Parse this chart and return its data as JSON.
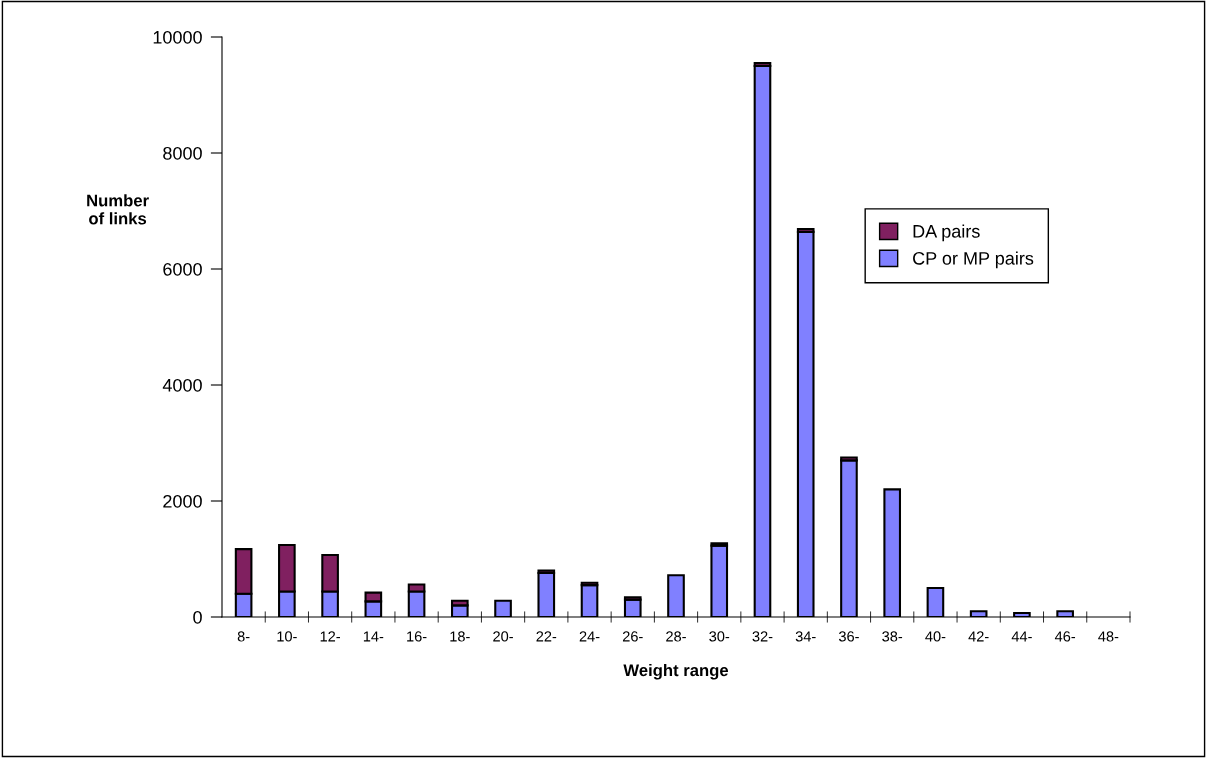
{
  "chart_data": {
    "type": "bar",
    "stacked": true,
    "xlabel": "Weight range",
    "ylabel": "Number\nof links",
    "categories": [
      "8-",
      "10-",
      "12-",
      "14-",
      "16-",
      "18-",
      "20-",
      "22-",
      "24-",
      "26-",
      "28-",
      "30-",
      "32-",
      "34-",
      "36-",
      "38-",
      "40-",
      "42-",
      "44-",
      "46-",
      "48-"
    ],
    "series": [
      {
        "name": "CP or MP pairs",
        "color": "#8080ff",
        "values": [
          400,
          440,
          440,
          270,
          440,
          200,
          280,
          760,
          550,
          300,
          720,
          1230,
          9500,
          6640,
          2700,
          2200,
          500,
          100,
          70,
          100,
          null
        ]
      },
      {
        "name": "DA pairs",
        "color": "#802060",
        "values": [
          770,
          800,
          630,
          150,
          120,
          80,
          null,
          40,
          40,
          40,
          null,
          40,
          50,
          50,
          50,
          null,
          null,
          null,
          null,
          null,
          null
        ]
      }
    ],
    "ylim": [
      0,
      10000
    ],
    "yticks": [
      0,
      2000,
      4000,
      6000,
      8000,
      10000
    ],
    "grid": false,
    "legend": "right"
  }
}
